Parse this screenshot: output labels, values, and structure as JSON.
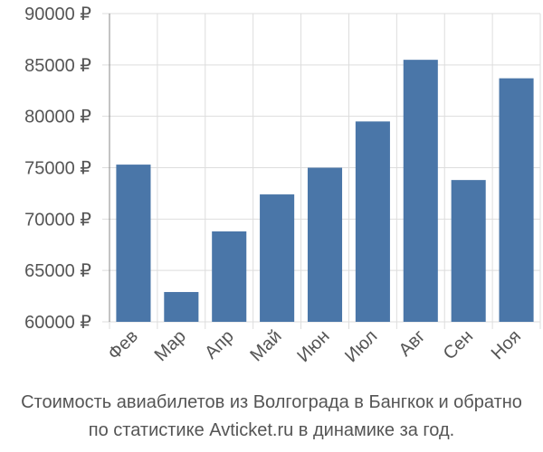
{
  "chart_data": {
    "type": "bar",
    "categories": [
      "Фев",
      "Мар",
      "Апр",
      "Май",
      "Июн",
      "Июл",
      "Авг",
      "Сен",
      "Ноя"
    ],
    "values": [
      75300,
      62900,
      68800,
      72400,
      75000,
      79500,
      85500,
      73800,
      83700
    ],
    "y_ticks": [
      "60000 ₽",
      "65000 ₽",
      "70000 ₽",
      "75000 ₽",
      "80000 ₽",
      "85000 ₽",
      "90000 ₽"
    ],
    "ylim": [
      60000,
      90000
    ],
    "tick_step": 5000,
    "grid": true,
    "title": "",
    "xlabel": "",
    "ylabel": "",
    "bar_color": "#4a76a8",
    "grid_color": "#dddddd",
    "text_color": "#555555"
  },
  "caption": {
    "line1": "Стоимость авиабилетов из Волгограда в Бангкок и обратно",
    "line2": "по статистике Avticket.ru в динамике за год."
  }
}
